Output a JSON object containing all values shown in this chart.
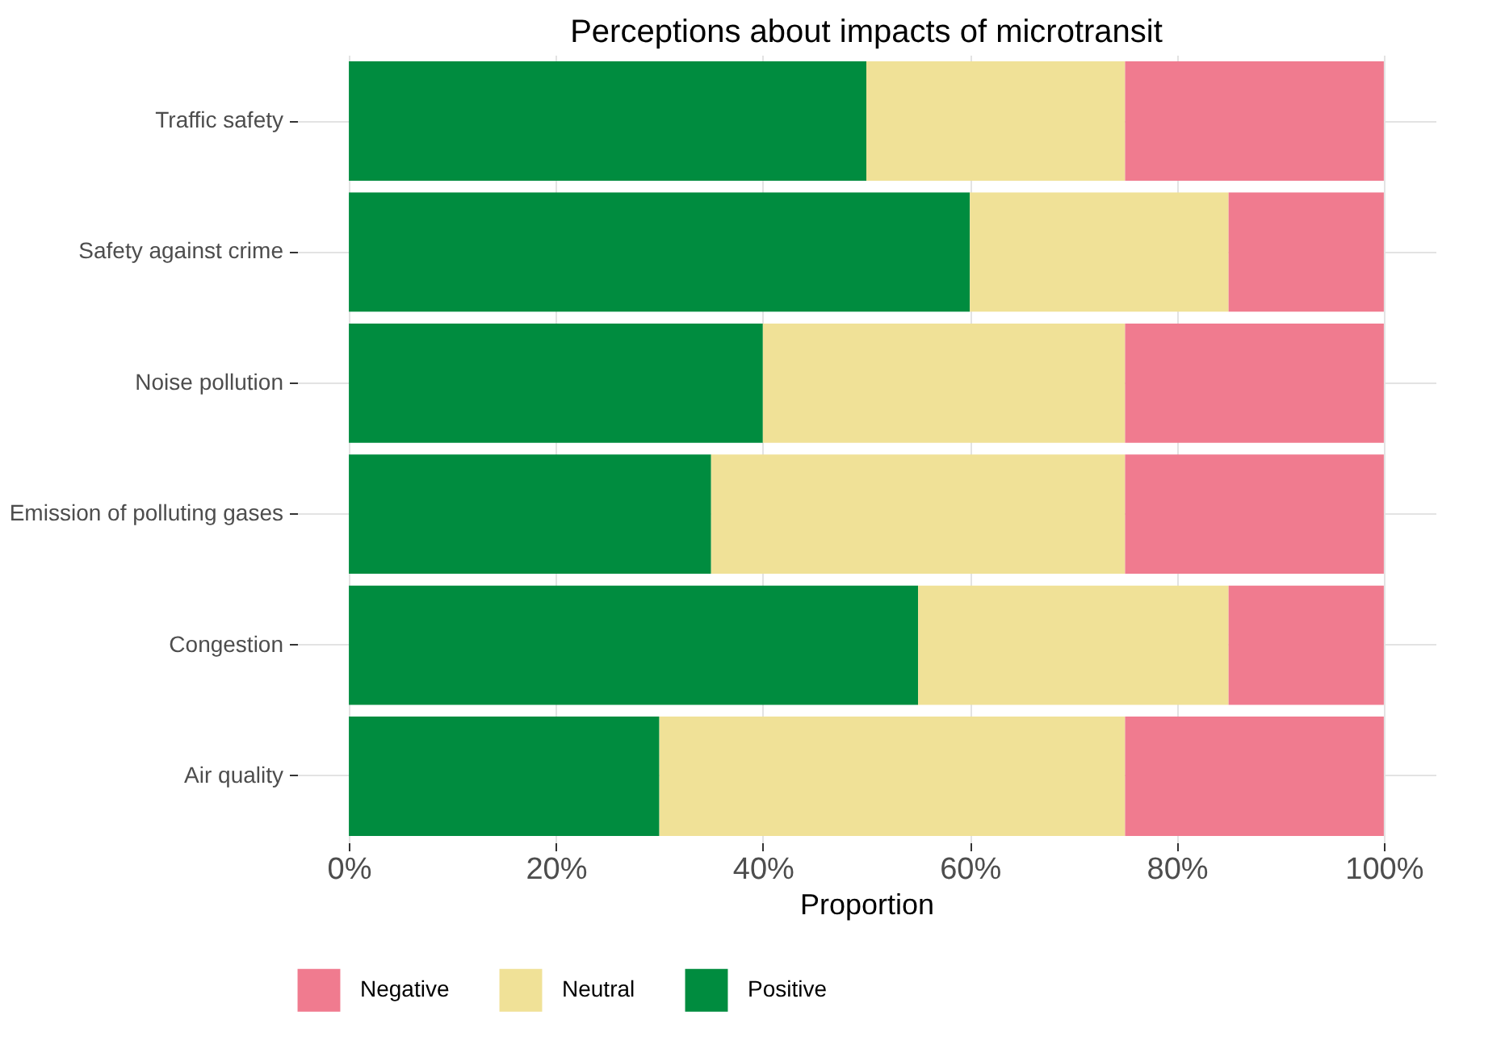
{
  "chart_data": {
    "type": "bar",
    "orientation": "horizontal",
    "stacked": true,
    "title": "Perceptions about impacts of microtransit",
    "xlabel": "Proportion",
    "categories": [
      "Traffic safety",
      "Safety against crime",
      "Noise pollution",
      "Emission of polluting gases",
      "Congestion",
      "Air quality"
    ],
    "series": [
      {
        "name": "Positive",
        "color": "#008c3f",
        "values": [
          50,
          60,
          40,
          35,
          55,
          30
        ]
      },
      {
        "name": "Neutral",
        "color": "#f0e197",
        "values": [
          25,
          25,
          35,
          40,
          30,
          45
        ]
      },
      {
        "name": "Negative",
        "color": "#f07b8f",
        "values": [
          25,
          15,
          25,
          25,
          15,
          25
        ]
      }
    ],
    "xlim": [
      -5,
      105
    ],
    "xticks": [
      {
        "value": 0,
        "label": "0%"
      },
      {
        "value": 20,
        "label": "20%"
      },
      {
        "value": 40,
        "label": "40%"
      },
      {
        "value": 60,
        "label": "60%"
      },
      {
        "value": 80,
        "label": "80%"
      },
      {
        "value": 100,
        "label": "100%"
      }
    ],
    "grid": true,
    "legend": "bottom"
  }
}
